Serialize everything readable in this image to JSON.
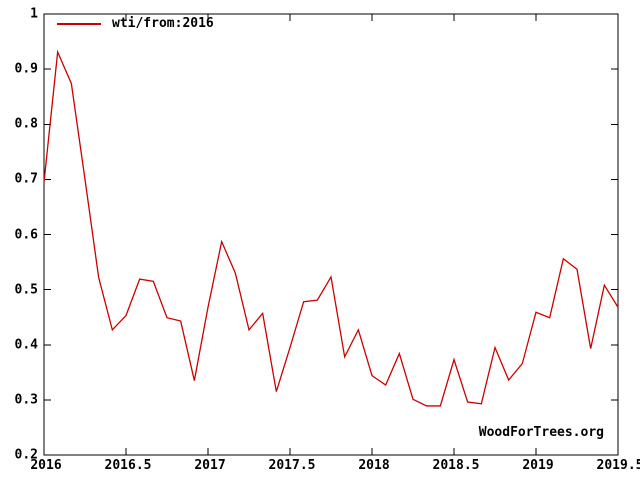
{
  "chart_data": {
    "type": "line",
    "title": "",
    "legend": "wti/from:2016",
    "watermark": "WoodForTrees.org",
    "grid": "off",
    "legend_position": "top-left",
    "axis_color": "#000000",
    "background_color": "#ffffff",
    "xlim": [
      2016,
      2019.5
    ],
    "ylim": [
      0.2,
      1.0
    ],
    "x_ticks": {
      "values": [
        2016,
        2016.5,
        2017,
        2017.5,
        2018,
        2018.5,
        2019,
        2019.5
      ],
      "labels": [
        "2016",
        "2016.5",
        "2017",
        "2017.5",
        "2018",
        "2018.5",
        "2019",
        "2019.5"
      ]
    },
    "y_ticks": {
      "values": [
        0.2,
        0.3,
        0.4,
        0.5,
        0.6,
        0.7,
        0.8,
        0.9,
        1
      ],
      "labels": [
        "0.2",
        "0.3",
        "0.4",
        "0.5",
        "0.6",
        "0.7",
        "0.8",
        "0.9",
        "1"
      ]
    },
    "series": [
      {
        "name": "wti/from:2016",
        "color": "#cc0000",
        "x": [
          2016.0,
          2016.0833,
          2016.1667,
          2016.25,
          2016.3333,
          2016.4167,
          2016.5,
          2016.5833,
          2016.6667,
          2016.75,
          2016.8333,
          2016.9167,
          2017.0,
          2017.0833,
          2017.1667,
          2017.25,
          2017.3333,
          2017.4167,
          2017.5,
          2017.5833,
          2017.6667,
          2017.75,
          2017.8333,
          2017.9167,
          2018.0,
          2018.0833,
          2018.1667,
          2018.25,
          2018.3333,
          2018.4167,
          2018.5,
          2018.5833,
          2018.6667,
          2018.75,
          2018.8333,
          2018.9167,
          2019.0,
          2019.0833,
          2019.1667,
          2019.25,
          2019.3333,
          2019.4167,
          2019.5
        ],
        "values": [
          0.695,
          0.931,
          0.874,
          0.7,
          0.522,
          0.427,
          0.453,
          0.519,
          0.515,
          0.449,
          0.443,
          0.335,
          0.468,
          0.587,
          0.53,
          0.427,
          0.457,
          0.315,
          0.395,
          0.478,
          0.481,
          0.523,
          0.378,
          0.427,
          0.344,
          0.327,
          0.384,
          0.301,
          0.289,
          0.289,
          0.373,
          0.296,
          0.293,
          0.395,
          0.336,
          0.366,
          0.459,
          0.449,
          0.556,
          0.537,
          0.393,
          0.508,
          0.468
        ]
      }
    ]
  }
}
